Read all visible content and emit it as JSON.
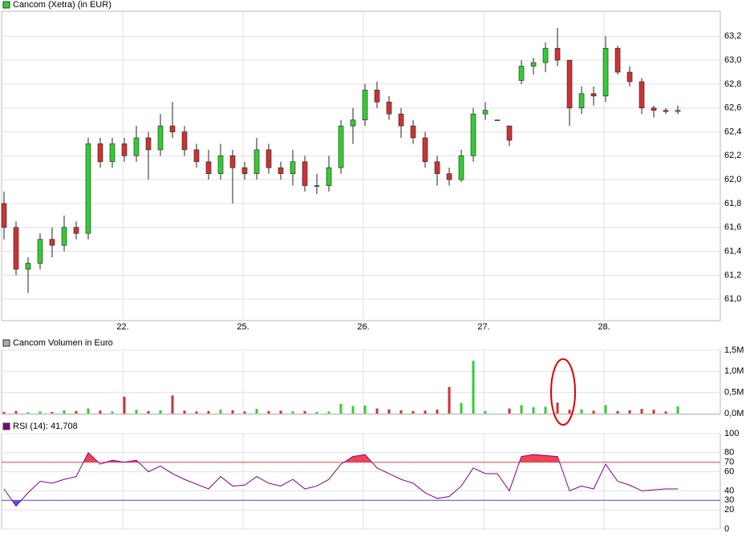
{
  "chart_data": [
    {
      "type": "candlestick",
      "title": "Cancom (Xetra) (in EUR)",
      "color": "#33cc33",
      "up_color": "#33cc33",
      "down_color": "#cc3333",
      "x": [
        0,
        1,
        2,
        3,
        4,
        5,
        6,
        7,
        8,
        9,
        10,
        11,
        12,
        13,
        14,
        15,
        16,
        17,
        18,
        19,
        20,
        21,
        22,
        23,
        24,
        25,
        26,
        27,
        28,
        29,
        30,
        31,
        32,
        33,
        34,
        35,
        36,
        37,
        38,
        39,
        40,
        41,
        42,
        43,
        44,
        45,
        46,
        47,
        48,
        49,
        50,
        51,
        52,
        53,
        54,
        55,
        56
      ],
      "open": [
        61.8,
        61.6,
        61.25,
        61.3,
        61.5,
        61.45,
        61.6,
        61.55,
        62.3,
        62.15,
        62.3,
        62.2,
        62.35,
        62.25,
        62.45,
        62.4,
        62.25,
        62.15,
        62.05,
        62.2,
        62.1,
        62.05,
        62.25,
        62.1,
        62.05,
        62.15,
        61.95,
        61.95,
        62.1,
        62.45,
        62.5,
        62.75,
        62.65,
        62.55,
        62.45,
        62.35,
        62.15,
        62.05,
        62.0,
        62.2,
        62.55,
        62.5,
        62.45,
        62.83,
        62.95,
        62.98,
        63.1,
        63.0,
        62.6,
        62.72,
        62.7,
        63.1,
        62.9,
        62.82,
        62.6,
        62.58,
        62.57
      ],
      "high": [
        61.9,
        61.65,
        61.35,
        61.55,
        61.6,
        61.7,
        61.65,
        62.35,
        62.35,
        62.35,
        62.35,
        62.45,
        62.4,
        62.55,
        62.65,
        62.45,
        62.3,
        62.25,
        62.3,
        62.25,
        62.15,
        62.35,
        62.3,
        62.15,
        62.25,
        62.2,
        62.05,
        62.2,
        62.5,
        62.6,
        62.8,
        62.82,
        62.7,
        62.6,
        62.5,
        62.4,
        62.2,
        62.1,
        62.25,
        62.6,
        62.65,
        62.5,
        62.45,
        63.0,
        63.02,
        63.15,
        63.27,
        63.0,
        62.78,
        62.78,
        63.2,
        63.12,
        62.95,
        62.85,
        62.62,
        62.6,
        62.62
      ],
      "low": [
        61.5,
        61.2,
        61.05,
        61.25,
        61.35,
        61.4,
        61.5,
        61.5,
        62.1,
        62.1,
        62.15,
        62.15,
        62.0,
        62.2,
        62.35,
        62.2,
        62.1,
        62.0,
        62.0,
        61.8,
        62.0,
        62.0,
        62.05,
        62.0,
        61.95,
        61.9,
        61.88,
        61.9,
        62.05,
        62.3,
        62.45,
        62.6,
        62.5,
        62.35,
        62.3,
        62.1,
        61.95,
        61.95,
        61.98,
        62.15,
        62.5,
        62.5,
        62.28,
        62.8,
        62.88,
        62.9,
        62.95,
        62.45,
        62.55,
        62.62,
        62.65,
        62.88,
        62.78,
        62.55,
        62.52,
        62.55,
        62.55
      ],
      "close": [
        61.6,
        61.25,
        61.3,
        61.5,
        61.45,
        61.6,
        61.55,
        62.3,
        62.15,
        62.3,
        62.2,
        62.35,
        62.25,
        62.45,
        62.4,
        62.25,
        62.15,
        62.05,
        62.2,
        62.1,
        62.05,
        62.25,
        62.1,
        62.05,
        62.15,
        61.95,
        61.95,
        62.1,
        62.45,
        62.5,
        62.75,
        62.65,
        62.55,
        62.45,
        62.35,
        62.15,
        62.05,
        62.0,
        62.2,
        62.55,
        62.58,
        62.5,
        62.33,
        62.95,
        62.98,
        63.1,
        63.0,
        62.6,
        62.72,
        62.7,
        63.1,
        62.9,
        62.82,
        62.6,
        62.58,
        62.57,
        62.58
      ],
      "xlim": [
        -0.2,
        59.53
      ],
      "xticks": [
        {
          "value": 9.87,
          "label": "22."
        },
        {
          "value": 19.87,
          "label": "25."
        },
        {
          "value": 29.87,
          "label": "26."
        },
        {
          "value": 39.87,
          "label": "27."
        },
        {
          "value": 49.87,
          "label": "28."
        }
      ],
      "ylim": [
        60.82,
        63.41
      ],
      "yticks": [
        {
          "value": 61.0,
          "label": "61,0"
        },
        {
          "value": 61.2,
          "label": "61,2"
        },
        {
          "value": 61.4,
          "label": "61,4"
        },
        {
          "value": 61.6,
          "label": "61,6"
        },
        {
          "value": 61.8,
          "label": "61,8"
        },
        {
          "value": 62.0,
          "label": "62,0"
        },
        {
          "value": 62.2,
          "label": "62,2"
        },
        {
          "value": 62.4,
          "label": "62,4"
        },
        {
          "value": 62.6,
          "label": "62,6"
        },
        {
          "value": 62.8,
          "label": "62,8"
        },
        {
          "value": 63.0,
          "label": "63,0"
        },
        {
          "value": 63.2,
          "label": "63,2"
        }
      ],
      "grid": true
    },
    {
      "type": "bar",
      "title": "Cancom Volumen in Euro",
      "color": "#aaaaaa",
      "values": [
        40000,
        60000,
        30000,
        50000,
        40000,
        80000,
        60000,
        120000,
        70000,
        50000,
        400000,
        90000,
        60000,
        80000,
        430000,
        70000,
        50000,
        60000,
        90000,
        80000,
        50000,
        110000,
        60000,
        70000,
        50000,
        60000,
        40000,
        50000,
        230000,
        180000,
        190000,
        120000,
        100000,
        80000,
        60000,
        70000,
        90000,
        630000,
        250000,
        1250000,
        60000,
        0,
        120000,
        200000,
        150000,
        160000,
        260000,
        90000,
        100000,
        70000,
        200000,
        60000,
        80000,
        110000,
        90000,
        50000,
        170000
      ],
      "ylim": [
        0,
        1500000
      ],
      "yticks": [
        {
          "value": 0,
          "label": "0,0M"
        },
        {
          "value": 500000,
          "label": "0,5M"
        },
        {
          "value": 1000000,
          "label": "1,0M"
        },
        {
          "value": 1500000,
          "label": "1,5M"
        }
      ],
      "grid": true
    },
    {
      "type": "line",
      "title": "RSI (14): 41,708",
      "color": "#800080",
      "values": [
        42,
        24,
        38,
        50,
        48,
        52,
        55,
        80,
        68,
        72,
        70,
        72,
        60,
        66,
        58,
        52,
        47,
        42,
        55,
        45,
        46,
        55,
        48,
        45,
        52,
        42,
        45,
        52,
        68,
        76,
        78,
        64,
        58,
        52,
        48,
        38,
        32,
        34,
        45,
        64,
        58,
        58,
        40,
        76,
        78,
        77,
        76,
        40,
        45,
        42,
        68,
        50,
        46,
        40,
        41,
        42,
        42
      ],
      "ylim": [
        0,
        100
      ],
      "yticks": [
        0,
        20,
        40,
        60,
        80,
        100
      ],
      "levels": [
        70,
        30
      ],
      "level_colors": [
        "#e04040",
        "#4040e0"
      ],
      "grid": true
    }
  ]
}
